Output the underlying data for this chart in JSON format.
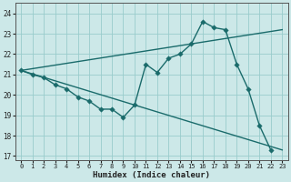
{
  "xlabel": "Humidex (Indice chaleur)",
  "bg_color": "#cce8e8",
  "grid_color": "#99cccc",
  "line_color": "#1a6b6b",
  "xlim": [
    -0.5,
    23.5
  ],
  "ylim": [
    16.8,
    24.5
  ],
  "yticks": [
    17,
    18,
    19,
    20,
    21,
    22,
    23,
    24
  ],
  "xticks": [
    0,
    1,
    2,
    3,
    4,
    5,
    6,
    7,
    8,
    9,
    10,
    11,
    12,
    13,
    14,
    15,
    16,
    17,
    18,
    19,
    20,
    21,
    22,
    23
  ],
  "curve_x": [
    0,
    1,
    2,
    3,
    4,
    5,
    6,
    7,
    8,
    9,
    10,
    11,
    12,
    13,
    14,
    15,
    16,
    17,
    18,
    19,
    20,
    21,
    22
  ],
  "curve_y": [
    21.2,
    21.0,
    20.85,
    20.5,
    20.3,
    19.9,
    19.7,
    19.3,
    19.3,
    18.9,
    19.5,
    21.5,
    21.1,
    21.8,
    22.0,
    22.5,
    23.6,
    23.3,
    23.2,
    21.5,
    20.3,
    18.5,
    17.3
  ],
  "upper_line_x": [
    0,
    23
  ],
  "upper_line_y": [
    21.2,
    23.2
  ],
  "lower_line_x": [
    0,
    23
  ],
  "lower_line_y": [
    21.2,
    17.3
  ],
  "xlabel_fontsize": 6.5,
  "tick_fontsize": 5.5,
  "linewidth": 1.0,
  "markersize": 2.8
}
